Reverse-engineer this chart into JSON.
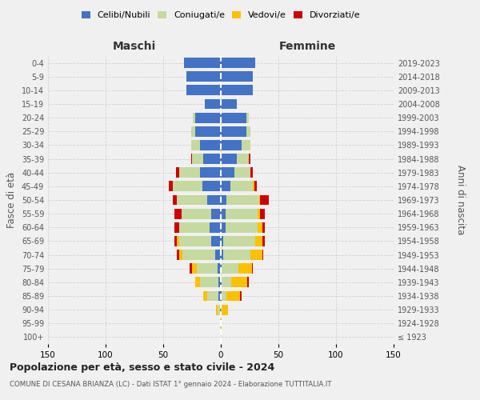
{
  "age_groups": [
    "100+",
    "95-99",
    "90-94",
    "85-89",
    "80-84",
    "75-79",
    "70-74",
    "65-69",
    "60-64",
    "55-59",
    "50-54",
    "45-49",
    "40-44",
    "35-39",
    "30-34",
    "25-29",
    "20-24",
    "15-19",
    "10-14",
    "5-9",
    "0-4"
  ],
  "birth_years": [
    "≤ 1923",
    "1924-1928",
    "1929-1933",
    "1934-1938",
    "1939-1943",
    "1944-1948",
    "1949-1953",
    "1954-1958",
    "1959-1963",
    "1964-1968",
    "1969-1973",
    "1974-1978",
    "1979-1983",
    "1984-1988",
    "1989-1993",
    "1994-1998",
    "1999-2003",
    "2004-2008",
    "2009-2013",
    "2014-2018",
    "2019-2023"
  ],
  "male": {
    "celibi": [
      0,
      0,
      1,
      2,
      2,
      3,
      5,
      8,
      10,
      8,
      12,
      16,
      18,
      15,
      18,
      22,
      22,
      14,
      30,
      30,
      32
    ],
    "coniugati": [
      0,
      1,
      2,
      10,
      16,
      18,
      28,
      28,
      26,
      26,
      26,
      26,
      18,
      10,
      8,
      4,
      2,
      0,
      0,
      0,
      0
    ],
    "vedovi": [
      0,
      0,
      1,
      3,
      4,
      4,
      3,
      2,
      0,
      0,
      0,
      0,
      0,
      0,
      0,
      0,
      0,
      0,
      0,
      0,
      0
    ],
    "divorziati": [
      0,
      0,
      0,
      0,
      0,
      2,
      2,
      2,
      4,
      6,
      4,
      3,
      3,
      1,
      0,
      0,
      0,
      0,
      0,
      0,
      0
    ]
  },
  "female": {
    "nubili": [
      0,
      0,
      0,
      1,
      1,
      1,
      2,
      2,
      4,
      4,
      5,
      8,
      12,
      14,
      18,
      22,
      22,
      14,
      28,
      28,
      30
    ],
    "coniugate": [
      0,
      0,
      0,
      4,
      8,
      14,
      24,
      28,
      28,
      28,
      28,
      20,
      14,
      10,
      8,
      4,
      2,
      0,
      0,
      0,
      0
    ],
    "vedove": [
      0,
      1,
      6,
      12,
      14,
      12,
      10,
      6,
      4,
      2,
      1,
      1,
      0,
      0,
      0,
      0,
      0,
      0,
      0,
      0,
      0
    ],
    "divorziate": [
      0,
      0,
      0,
      1,
      1,
      1,
      1,
      2,
      2,
      4,
      8,
      2,
      2,
      2,
      0,
      0,
      0,
      0,
      0,
      0,
      0
    ]
  },
  "colors": {
    "celibi": "#4472c4",
    "coniugati": "#c5d9a0",
    "vedovi": "#ffc000",
    "divorziati": "#cc0000"
  },
  "xlim": 150,
  "title": "Popolazione per età, sesso e stato civile - 2024",
  "subtitle": "COMUNE DI CESANA BRIANZA (LC) - Dati ISTAT 1° gennaio 2024 - Elaborazione TUTTITALIA.IT",
  "xlabel_left": "Maschi",
  "xlabel_right": "Femmine",
  "ylabel": "Fasce di età",
  "ylabel_right": "Anni di nascita",
  "bg_color": "#f0f0f0",
  "grid_color": "#cccccc",
  "legend_labels": [
    "Celibi/Nubili",
    "Coniugati/e",
    "Vedovi/e",
    "Divorziati/e"
  ]
}
